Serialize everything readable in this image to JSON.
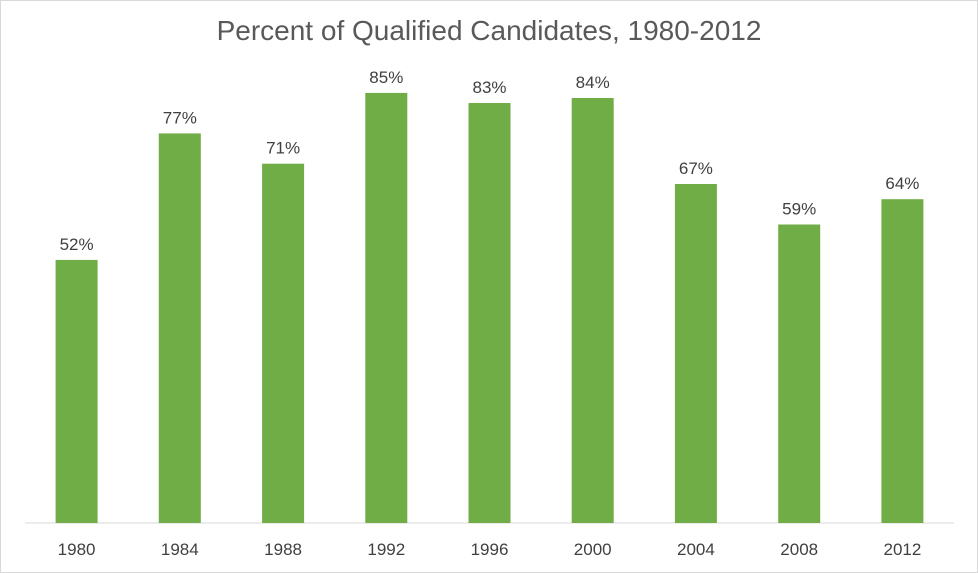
{
  "chart_data": {
    "type": "bar",
    "title": "Percent of Qualified Candidates, 1980-2012",
    "xlabel": "",
    "ylabel": "",
    "categories": [
      "1980",
      "1984",
      "1988",
      "1992",
      "1996",
      "2000",
      "2004",
      "2008",
      "2012"
    ],
    "values": [
      52,
      77,
      71,
      85,
      83,
      84,
      67,
      59,
      64
    ],
    "data_labels": [
      "52%",
      "77%",
      "71%",
      "85%",
      "83%",
      "84%",
      "67%",
      "59%",
      "64%"
    ],
    "ylim": [
      0,
      100
    ],
    "grid": false,
    "legend": "none",
    "colors": {
      "bar": "#70ad47",
      "axis": "#d9d9d9",
      "text": "#404040",
      "title": "#595959"
    }
  }
}
